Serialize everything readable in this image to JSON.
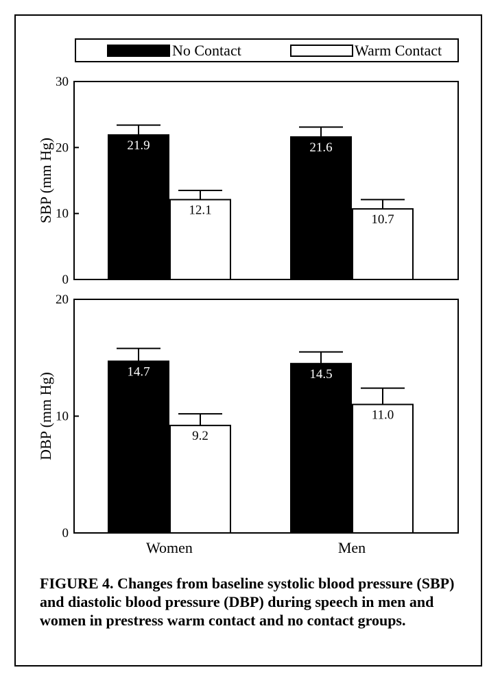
{
  "chart_data": [
    {
      "type": "bar",
      "title": "",
      "ylabel": "SBP (mm Hg)",
      "xlabel": "",
      "ylim": [
        0,
        30
      ],
      "yticks": [
        0,
        10,
        20,
        30
      ],
      "categories": [
        "Women",
        "Men"
      ],
      "series": [
        {
          "name": "No Contact",
          "color": "#000000",
          "values": [
            21.9,
            21.6
          ],
          "errors": [
            1.5,
            1.5
          ],
          "labels": [
            "21.9",
            "21.6"
          ]
        },
        {
          "name": "Warm Contact",
          "color": "#ffffff",
          "values": [
            12.1,
            10.7
          ],
          "errors": [
            1.4,
            1.4
          ],
          "labels": [
            "12.1",
            "10.7"
          ]
        }
      ]
    },
    {
      "type": "bar",
      "title": "",
      "ylabel": "DBP (mm Hg)",
      "xlabel": "",
      "ylim": [
        0,
        20
      ],
      "yticks": [
        0,
        10,
        20
      ],
      "categories": [
        "Women",
        "Men"
      ],
      "series": [
        {
          "name": "No Contact",
          "color": "#000000",
          "values": [
            14.7,
            14.5
          ],
          "errors": [
            1.1,
            1.0
          ],
          "labels": [
            "14.7",
            "14.5"
          ]
        },
        {
          "name": "Warm Contact",
          "color": "#ffffff",
          "values": [
            9.2,
            11.0
          ],
          "errors": [
            1.0,
            1.4
          ],
          "labels": [
            "9.2",
            "11.0"
          ]
        }
      ]
    }
  ],
  "legend": [
    {
      "name": "No Contact",
      "color": "#000000"
    },
    {
      "name": "Warm Contact",
      "color": "#ffffff"
    }
  ],
  "x_categories": [
    "Women",
    "Men"
  ],
  "caption": "FIGURE 4. Changes from baseline systolic blood pressure (SBP) and diastolic blood pressure (DBP) during speech in men and women in prestress warm contact and no contact groups."
}
